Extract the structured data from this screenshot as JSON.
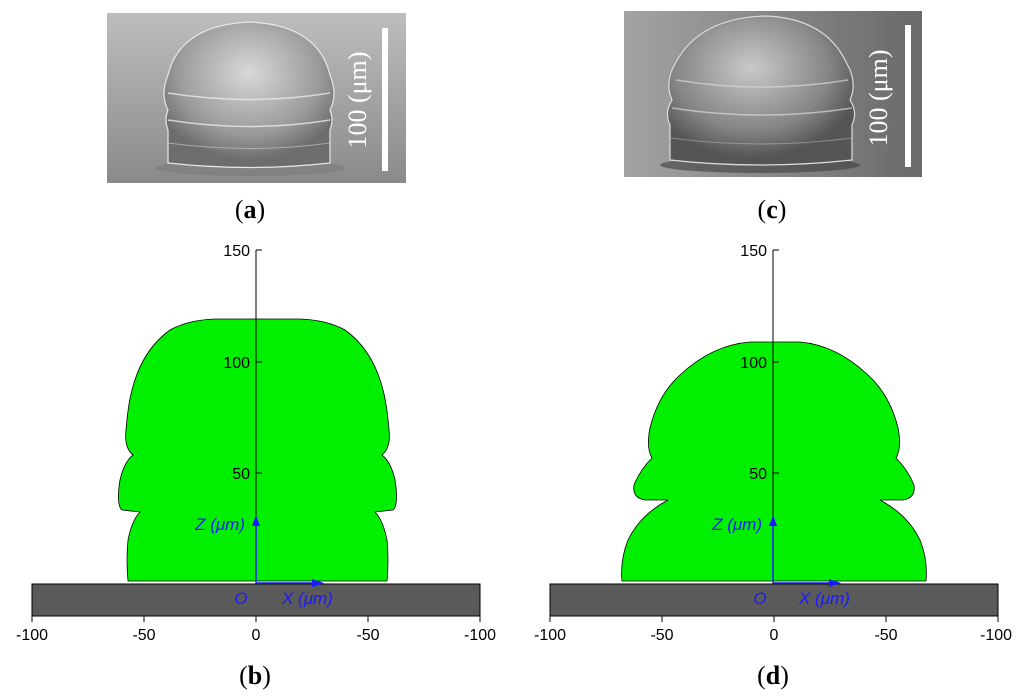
{
  "panels": [
    {
      "id": "a",
      "label": "a",
      "kind": "sem-image",
      "scale_bar_label": "100 (μm)"
    },
    {
      "id": "b",
      "label": "b",
      "kind": "profile",
      "z_ticks": [
        "150",
        "100",
        "50"
      ],
      "x_ticks": [
        "-100",
        "-50",
        "0",
        "-50",
        "-100"
      ],
      "z_axis_label": "Z (μm)",
      "x_axis_label": "X (μm)",
      "origin_label": "O"
    },
    {
      "id": "c",
      "label": "c",
      "kind": "sem-image",
      "scale_bar_label": "100 (μm)"
    },
    {
      "id": "d",
      "label": "d",
      "kind": "profile",
      "z_ticks": [
        "150",
        "100",
        "50"
      ],
      "x_ticks": [
        "-100",
        "-50",
        "0",
        "-50",
        "-100"
      ],
      "z_axis_label": "Z (μm)",
      "x_axis_label": "X (μm)",
      "origin_label": "O"
    }
  ],
  "colors": {
    "profile_fill": "#00f000",
    "substrate": "#5a5a5a",
    "axis_annotation": "#1a1aff",
    "axis_line": "#000000",
    "sem_background_a": "#a9a9a9",
    "sem_background_c": "#8f8f8f",
    "scale_bar": "#ffffff"
  },
  "icons": [
    "z-direction-arrow-icon",
    "x-direction-arrow-icon"
  ]
}
